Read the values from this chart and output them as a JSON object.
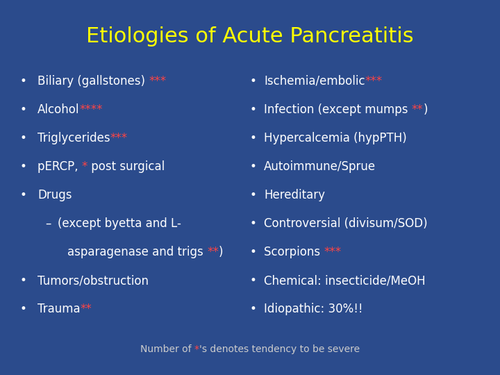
{
  "title": "Etiologies of Acute Pancreatitis",
  "title_color": "#FFFF00",
  "background_color": "#2B4B8C",
  "white_color": "#FFFFFF",
  "red_color": "#FF4444",
  "footer_color": "#CCCCCC",
  "title_fontsize": 22,
  "body_fontsize": 12,
  "footer_fontsize": 10,
  "left_items": [
    {
      "bullet": "•",
      "indent": 0,
      "parts": [
        {
          "text": "Biliary (gallstones) ",
          "color": "white"
        },
        {
          "text": "***",
          "color": "red"
        }
      ]
    },
    {
      "bullet": "•",
      "indent": 0,
      "parts": [
        {
          "text": "Alcohol",
          "color": "white"
        },
        {
          "text": "****",
          "color": "red"
        }
      ]
    },
    {
      "bullet": "•",
      "indent": 0,
      "parts": [
        {
          "text": "Triglycerides",
          "color": "white"
        },
        {
          "text": "***",
          "color": "red"
        }
      ]
    },
    {
      "bullet": "•",
      "indent": 0,
      "parts": [
        {
          "text": "pERCP, ",
          "color": "white"
        },
        {
          "text": "*",
          "color": "red"
        },
        {
          "text": " post surgical",
          "color": "white"
        }
      ]
    },
    {
      "bullet": "•",
      "indent": 0,
      "parts": [
        {
          "text": "Drugs",
          "color": "white"
        }
      ]
    },
    {
      "bullet": "–",
      "indent": 1,
      "parts": [
        {
          "text": "(except byetta and L-",
          "color": "white"
        }
      ]
    },
    {
      "bullet": "",
      "indent": 2,
      "parts": [
        {
          "text": "asparagenase and trigs ",
          "color": "white"
        },
        {
          "text": "**",
          "color": "red"
        },
        {
          "text": ")",
          "color": "white"
        }
      ]
    },
    {
      "bullet": "•",
      "indent": 0,
      "parts": [
        {
          "text": "Tumors/obstruction",
          "color": "white"
        }
      ]
    },
    {
      "bullet": "•",
      "indent": 0,
      "parts": [
        {
          "text": "Trauma",
          "color": "white"
        },
        {
          "text": "**",
          "color": "red"
        }
      ]
    }
  ],
  "right_items": [
    {
      "bullet": "•",
      "parts": [
        {
          "text": "Ischemia/embolic",
          "color": "white"
        },
        {
          "text": "***",
          "color": "red"
        }
      ]
    },
    {
      "bullet": "•",
      "parts": [
        {
          "text": "Infection (except mumps ",
          "color": "white"
        },
        {
          "text": "**",
          "color": "red"
        },
        {
          "text": ")",
          "color": "white"
        }
      ]
    },
    {
      "bullet": "•",
      "parts": [
        {
          "text": "Hypercalcemia (hypPTH)",
          "color": "white"
        }
      ]
    },
    {
      "bullet": "•",
      "parts": [
        {
          "text": "Autoimmune/Sprue",
          "color": "white"
        }
      ]
    },
    {
      "bullet": "•",
      "parts": [
        {
          "text": "Hereditary",
          "color": "white"
        }
      ]
    },
    {
      "bullet": "•",
      "parts": [
        {
          "text": "Controversial (divisum/SOD)",
          "color": "white"
        }
      ]
    },
    {
      "bullet": "•",
      "parts": [
        {
          "text": "Scorpions ",
          "color": "white"
        },
        {
          "text": "***",
          "color": "red"
        }
      ]
    },
    {
      "bullet": "•",
      "parts": [
        {
          "text": "Chemical: insecticide/MeOH",
          "color": "white"
        }
      ]
    },
    {
      "bullet": "•",
      "parts": [
        {
          "text": "Idiopathic: 30%!!",
          "color": "white"
        }
      ]
    }
  ],
  "footer_parts": [
    {
      "text": "Number of ",
      "color": "#CCCCCC"
    },
    {
      "text": "*",
      "color": "#FF4444"
    },
    {
      "text": "'s denotes tendency to be severe",
      "color": "#CCCCCC"
    }
  ]
}
